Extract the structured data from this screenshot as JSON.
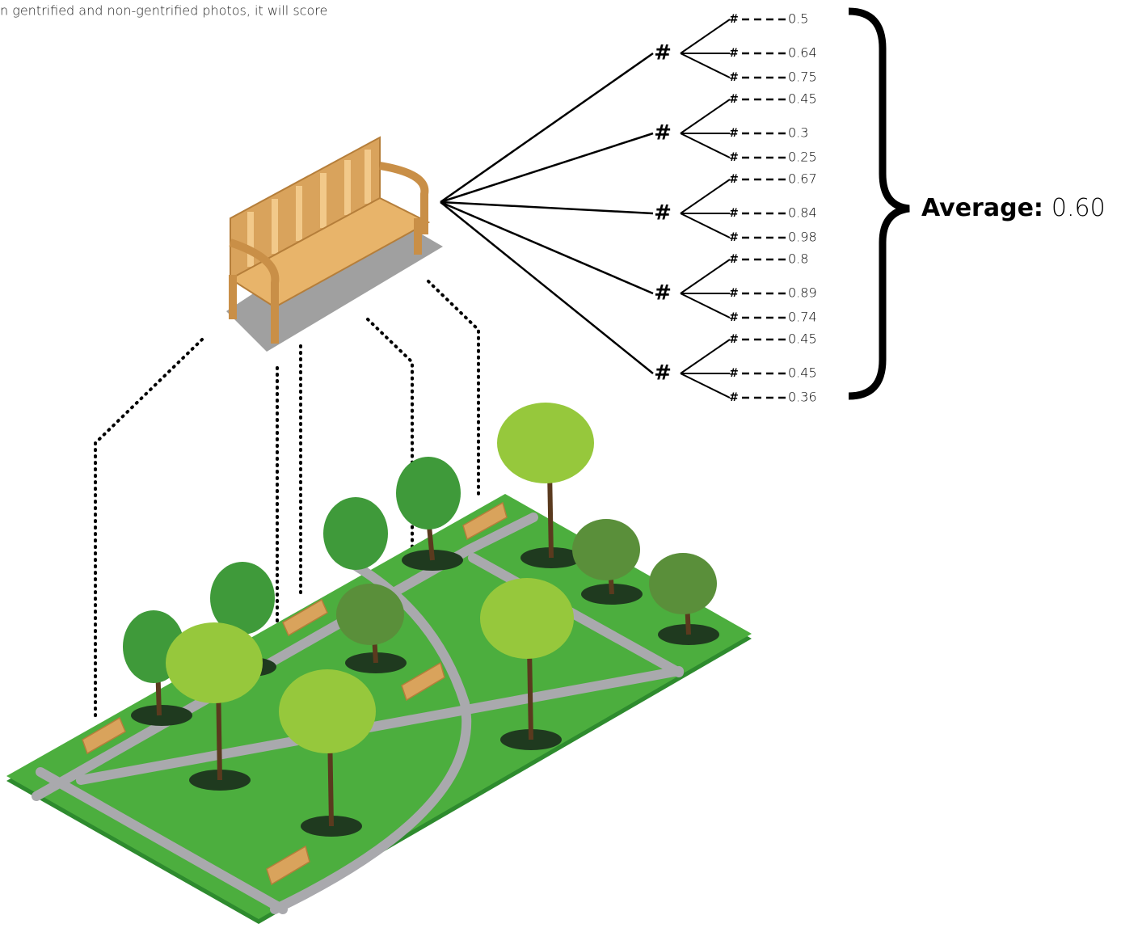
{
  "caption": "n gentrified and non-gentrified photos, it will score",
  "groups": [
    {
      "label": "#",
      "items": [
        {
          "label": "#",
          "score": 0.5
        },
        {
          "label": "#",
          "score": 0.64
        },
        {
          "label": "#",
          "score": 0.75
        }
      ]
    },
    {
      "label": "#",
      "items": [
        {
          "label": "#",
          "score": 0.45
        },
        {
          "label": "#",
          "score": 0.3
        },
        {
          "label": "#",
          "score": 0.25
        }
      ]
    },
    {
      "label": "#",
      "items": [
        {
          "label": "#",
          "score": 0.67
        },
        {
          "label": "#",
          "score": 0.84
        },
        {
          "label": "#",
          "score": 0.98
        }
      ]
    },
    {
      "label": "#",
      "items": [
        {
          "label": "#",
          "score": 0.8
        },
        {
          "label": "#",
          "score": 0.89
        },
        {
          "label": "#",
          "score": 0.74
        }
      ]
    },
    {
      "label": "#",
      "items": [
        {
          "label": "#",
          "score": 0.45
        },
        {
          "label": "#",
          "score": 0.45
        },
        {
          "label": "#",
          "score": 0.36
        }
      ]
    }
  ],
  "average": {
    "label": "Average:",
    "value": "0.60"
  }
}
